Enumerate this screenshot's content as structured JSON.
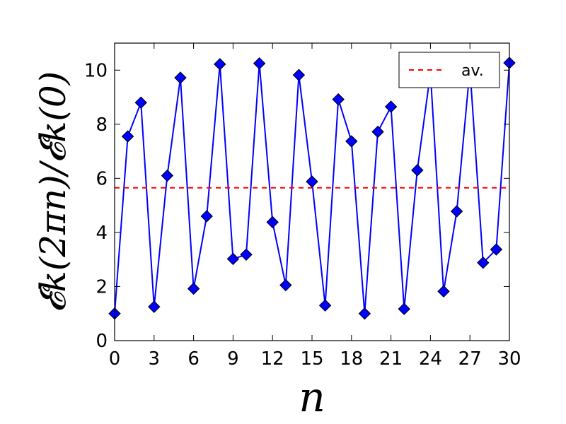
{
  "chart_data": {
    "type": "line",
    "xlabel": "n",
    "ylabel": "𝓔k(2πn)/𝓔k(0)",
    "xlim": [
      0,
      30
    ],
    "ylim": [
      0,
      11
    ],
    "xticks": [
      0,
      3,
      6,
      9,
      12,
      15,
      18,
      21,
      24,
      27,
      30
    ],
    "yticks": [
      0,
      2,
      4,
      6,
      8,
      10
    ],
    "grid": false,
    "legend_position": "top-right",
    "series": [
      {
        "style": "solid-line-diamond-markers",
        "color": "#0000ff",
        "x": [
          0,
          1,
          2,
          3,
          4,
          5,
          6,
          7,
          8,
          9,
          10,
          11,
          12,
          13,
          14,
          15,
          16,
          17,
          18,
          19,
          20,
          21,
          22,
          23,
          24,
          25,
          26,
          27,
          28,
          29,
          30
        ],
        "y": [
          1.0,
          7.55,
          8.8,
          1.25,
          6.1,
          9.72,
          1.92,
          4.6,
          10.22,
          3.02,
          3.18,
          10.25,
          4.38,
          2.05,
          9.82,
          5.88,
          1.3,
          8.92,
          7.37,
          1.0,
          7.72,
          8.65,
          1.17,
          6.3,
          9.9,
          1.82,
          4.78,
          10.05,
          2.88,
          3.37,
          10.27
        ]
      },
      {
        "name": "av.",
        "style": "dashed-line",
        "color": "#ff0000",
        "y_constant": 5.65
      }
    ]
  }
}
